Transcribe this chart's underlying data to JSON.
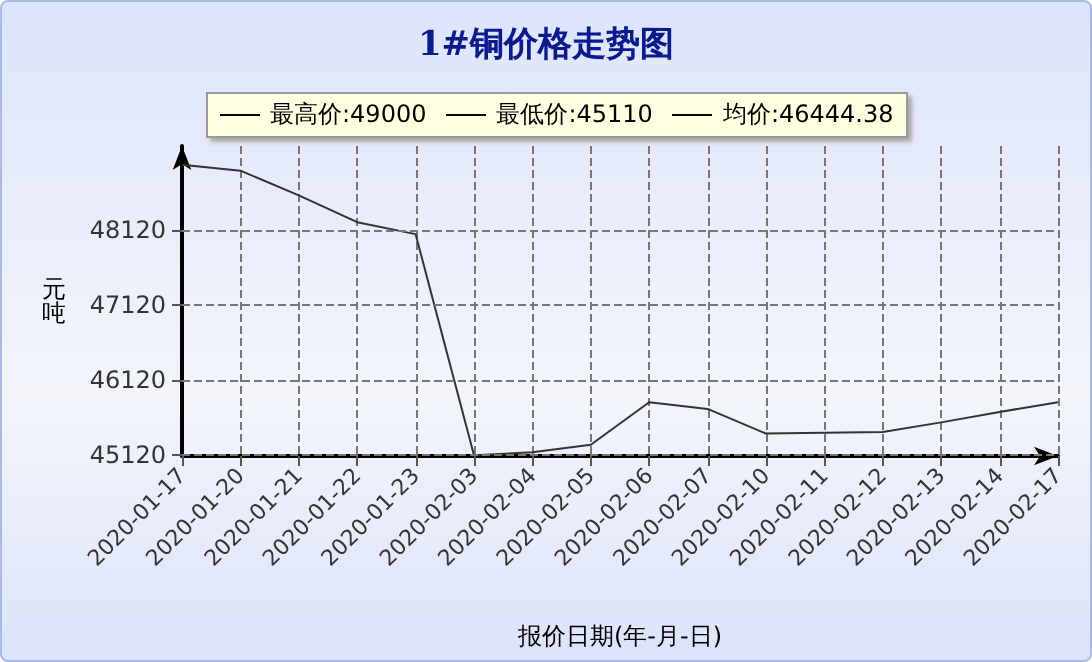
{
  "chart_data": {
    "type": "line",
    "title": "1#铜价格走势图",
    "xlabel": "报价日期(年-月-日)",
    "ylabel": "元吨",
    "annotations": [
      "最高价:49000",
      "最低价:45110",
      "均价:46444.38"
    ],
    "categories": [
      "2020-01-17",
      "2020-01-20",
      "2020-01-21",
      "2020-01-22",
      "2020-01-23",
      "2020-02-03",
      "2020-02-04",
      "2020-02-05",
      "2020-02-06",
      "2020-02-07",
      "2020-02-10",
      "2020-02-11",
      "2020-02-12",
      "2020-02-13",
      "2020-02-14",
      "2020-02-17"
    ],
    "series": [
      {
        "color": "#333333",
        "values": [
          49000,
          48920,
          48590,
          48230,
          48070,
          45110,
          45150,
          45250,
          45820,
          45730,
          45400,
          45410,
          45420,
          45550,
          45690,
          45820
        ]
      }
    ],
    "ylim": [
      45100,
      49250
    ],
    "yticks": [
      45120,
      46120,
      47120,
      48120
    ],
    "grid": true,
    "marker": "none",
    "line_style": "solid"
  }
}
